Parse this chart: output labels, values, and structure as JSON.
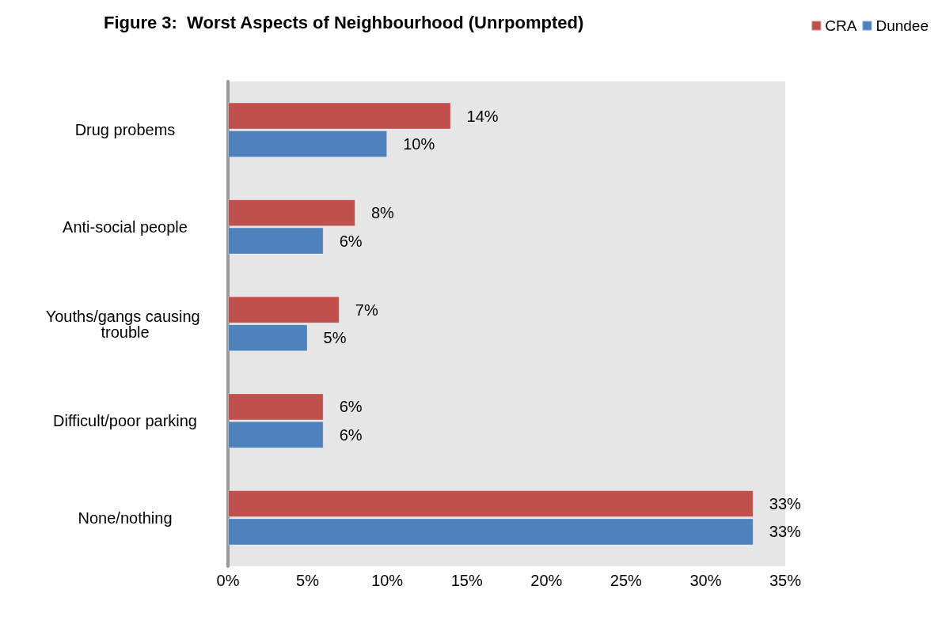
{
  "chart_data": {
    "type": "bar",
    "orientation": "horizontal",
    "title": "Figure 3:  Worst Aspects of Neighbourhood (Unrpompted)",
    "categories": [
      "Drug probems",
      "Anti-social people",
      "Youths/gangs causing trouble",
      "Difficult/poor parking",
      "None/nothing"
    ],
    "series": [
      {
        "name": "CRA",
        "color": "#c0504d",
        "values": [
          14,
          8,
          7,
          6,
          33
        ],
        "value_labels": [
          "14%",
          "8%",
          "7%",
          "6%",
          "33%"
        ]
      },
      {
        "name": "Dundee",
        "color": "#4f81bd",
        "values": [
          10,
          6,
          5,
          6,
          33
        ],
        "value_labels": [
          "10%",
          "6%",
          "5%",
          "6%",
          "33%"
        ]
      }
    ],
    "xlim": [
      0,
      35
    ],
    "xticks": [
      {
        "value": 0,
        "label": "0%"
      },
      {
        "value": 5,
        "label": "5%"
      },
      {
        "value": 10,
        "label": "10%"
      },
      {
        "value": 15,
        "label": "15%"
      },
      {
        "value": 20,
        "label": "20%"
      },
      {
        "value": 25,
        "label": "25%"
      },
      {
        "value": 30,
        "label": "30%"
      },
      {
        "value": 35,
        "label": "35%"
      }
    ],
    "grid": false,
    "legend": "top right"
  }
}
